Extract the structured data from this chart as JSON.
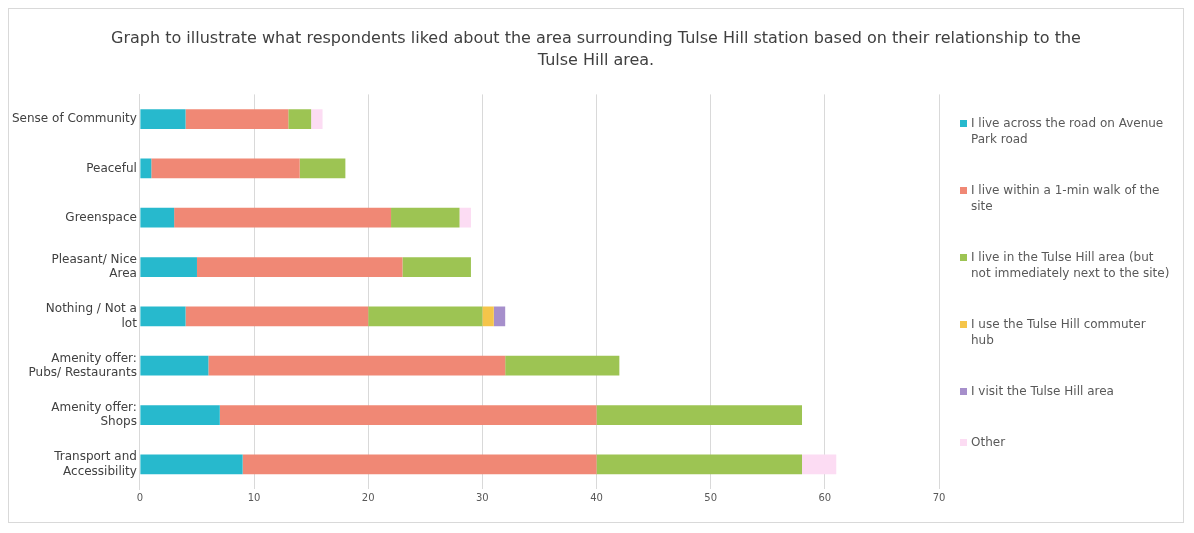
{
  "chart_data": {
    "type": "bar",
    "orientation": "horizontal",
    "stacked": true,
    "title": "Graph to illustrate what respondents liked about the area surrounding Tulse Hill station based on their relationship to the Tulse Hill area.",
    "categories": [
      "Sense of Community",
      "Peaceful",
      "Greenspace",
      "Pleasant/ Nice Area",
      "Nothing / Not a lot",
      "Amenity offer: Pubs/ Restaurants",
      "Amenity offer: Shops",
      "Transport and Accessibility"
    ],
    "series": [
      {
        "name": "I live across the road on Avenue Park road",
        "color": "#27b9cd",
        "values": [
          4,
          1,
          3,
          5,
          4,
          6,
          7,
          9
        ]
      },
      {
        "name": "I live within a 1-min walk of the site",
        "color": "#f08875",
        "values": [
          9,
          13,
          19,
          18,
          16,
          26,
          33,
          31
        ]
      },
      {
        "name": "I live in the Tulse Hill area (but not immediately next to the site)",
        "color": "#9dc453",
        "values": [
          2,
          4,
          6,
          6,
          10,
          10,
          18,
          18
        ]
      },
      {
        "name": "I use the Tulse Hill commuter hub",
        "color": "#f5c54a",
        "values": [
          null,
          null,
          null,
          null,
          1,
          null,
          null,
          null
        ]
      },
      {
        "name": "I visit the Tulse Hill area",
        "color": "#a68fcb",
        "values": [
          null,
          null,
          null,
          null,
          1,
          null,
          null,
          null
        ]
      },
      {
        "name": "Other",
        "color": "#fcdcf3",
        "values": [
          1,
          null,
          1,
          null,
          null,
          null,
          null,
          3
        ]
      }
    ],
    "xlim": [
      0,
      70
    ],
    "xticks": [
      0,
      10,
      20,
      30,
      40,
      50,
      60,
      70
    ],
    "grid": "x",
    "legend": "right"
  }
}
